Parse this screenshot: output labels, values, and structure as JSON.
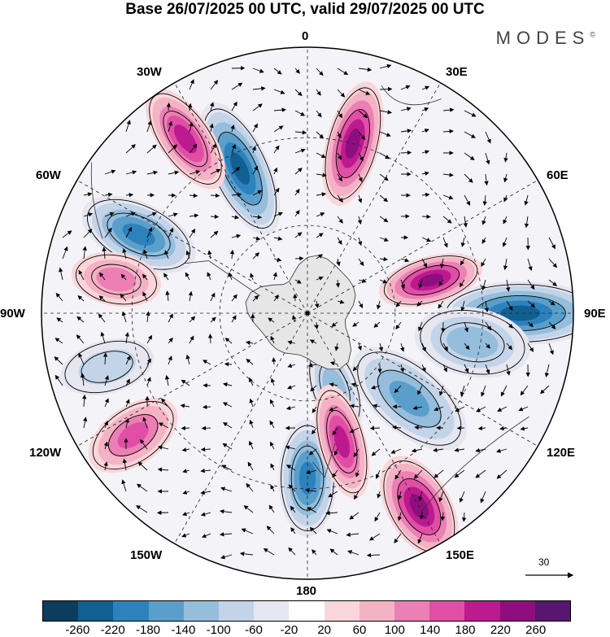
{
  "title": "Base 26/07/2025 00 UTC, valid 29/07/2025 00 UTC",
  "brand": "MODES",
  "brand_mark": "©",
  "longitude_labels": {
    "lon_0": "0",
    "lon_30e": "30E",
    "lon_60e": "60E",
    "lon_90e": "90E",
    "lon_120e": "120E",
    "lon_150e": "150E",
    "lon_180": "180",
    "lon_150w": "150W",
    "lon_120w": "120W",
    "lon_90w": "90W",
    "lon_60w": "60W",
    "lon_30w": "30W"
  },
  "reference_vector": "30",
  "colorbar": {
    "colors": [
      "#0c3d5e",
      "#125f91",
      "#2d82bd",
      "#5a9fcc",
      "#95bddc",
      "#c3d4e9",
      "#e6e6f0",
      "#ffffff",
      "#f9d6da",
      "#f4b2c5",
      "#ec7fb4",
      "#e04fa5",
      "#bc1a8f",
      "#8e0e7f",
      "#581670"
    ],
    "labels": [
      "-260",
      "-220",
      "-180",
      "-140",
      "-100",
      "-60",
      "-20",
      "20",
      "60",
      "100",
      "140",
      "180",
      "220",
      "260"
    ]
  },
  "anomaly_centers": [
    {
      "lon": 90,
      "value": -220
    },
    {
      "lon": 130,
      "value": -170
    },
    {
      "lon": 180,
      "value": -200
    },
    {
      "lon": -25,
      "value": -220
    },
    {
      "lon": -65,
      "value": -180
    },
    {
      "lon": 160,
      "value": -120
    },
    {
      "lon": 100,
      "value": -110
    },
    {
      "lon": 15,
      "value": 240
    },
    {
      "lon": 75,
      "value": 240
    },
    {
      "lon": 165,
      "value": 200
    },
    {
      "lon": 150,
      "value": 240
    },
    {
      "lon": -35,
      "value": 190
    },
    {
      "lon": -80,
      "value": 130
    },
    {
      "lon": -125,
      "value": 170
    },
    {
      "lon": -105,
      "value": -60
    }
  ]
}
